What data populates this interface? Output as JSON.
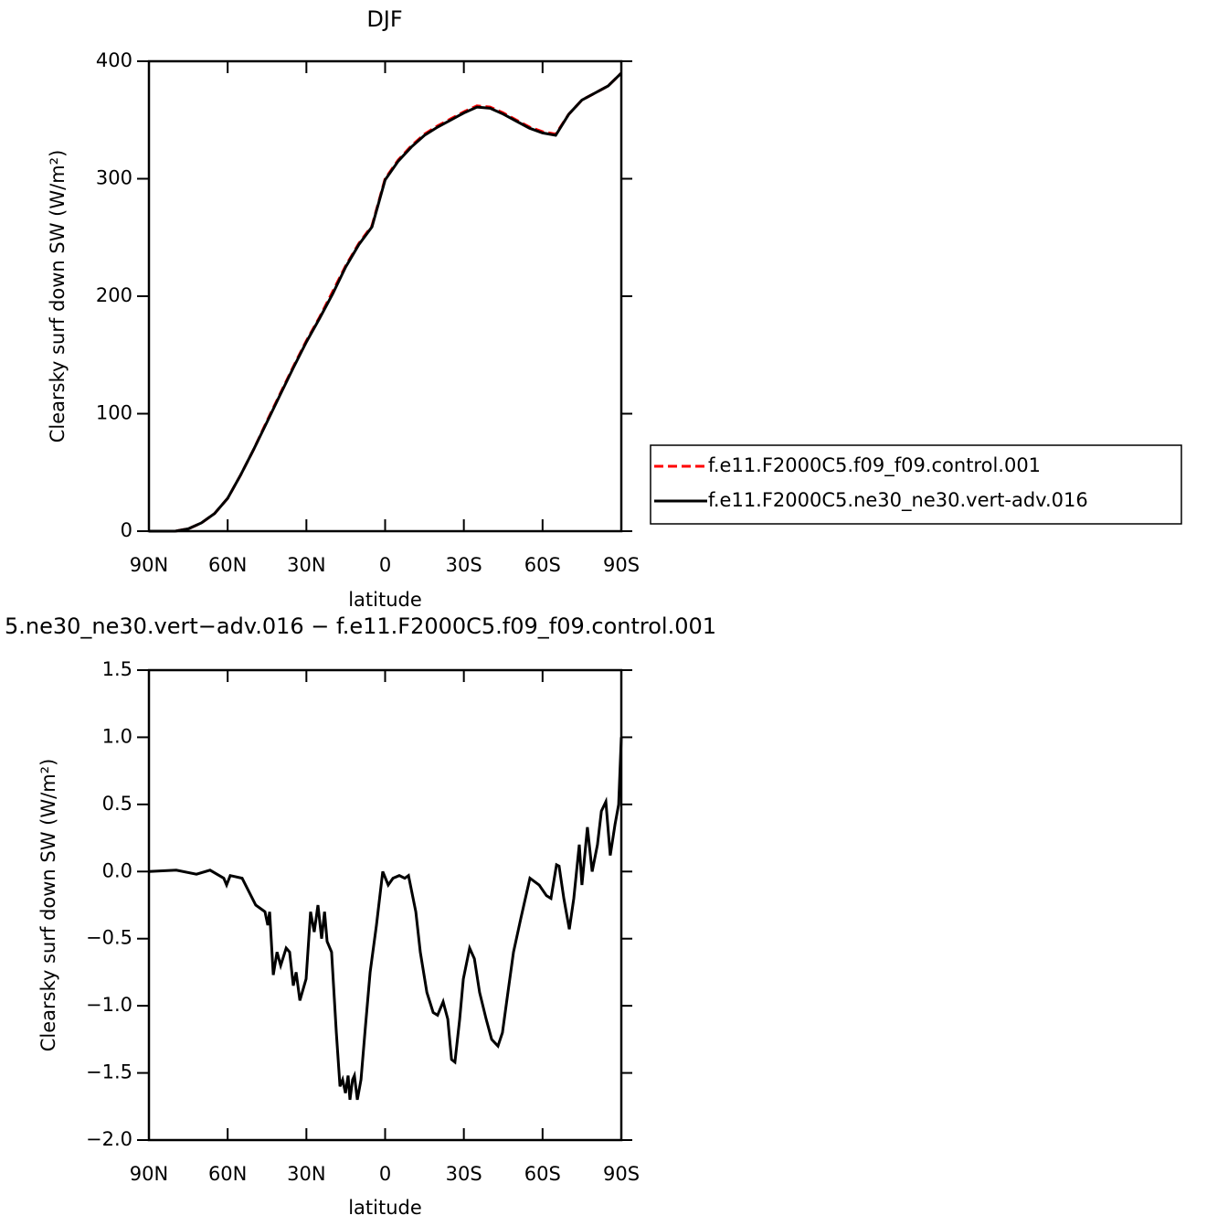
{
  "chart_data": [
    {
      "type": "line",
      "title": "DJF",
      "ylabel": "Clearsky surf down SW (W/m²)",
      "xlabel": "latitude",
      "x": [
        90,
        85,
        80,
        75,
        70,
        65,
        60,
        55,
        50,
        45,
        40,
        35,
        30,
        25,
        20,
        15,
        10,
        5,
        0,
        -5,
        -10,
        -15,
        -20,
        -25,
        -30,
        -35,
        -40,
        -45,
        -50,
        -55,
        -60,
        -65,
        -70,
        -75,
        -80,
        -85,
        -90
      ],
      "series": [
        {
          "name": "f.e11.F2000C5.f09_f09.control.001",
          "color": "#ff0000",
          "dash": true,
          "values": [
            0,
            0,
            0,
            2,
            7,
            15,
            28,
            48,
            70,
            94,
            117,
            140,
            162,
            182,
            204,
            226,
            245,
            260,
            300,
            316,
            328,
            338,
            345,
            351,
            357,
            362,
            361,
            356,
            350,
            344,
            340,
            338,
            355,
            367,
            373,
            379,
            390
          ]
        },
        {
          "name": "f.e11.F2000C5.ne30_ne30.vert-adv.016",
          "color": "#000000",
          "dash": false,
          "values": [
            0,
            0,
            0,
            2,
            7,
            15,
            28,
            48,
            70,
            93,
            116,
            139,
            161,
            181,
            202,
            225,
            244,
            259,
            299,
            315,
            327,
            337,
            344,
            350,
            356,
            361,
            360,
            355,
            349,
            343,
            339,
            337,
            355,
            367,
            373,
            379,
            390
          ]
        }
      ],
      "xlim": [
        90,
        -90
      ],
      "ylim": [
        0,
        400
      ],
      "xticks": [
        {
          "value": 90,
          "label": "90N"
        },
        {
          "value": 60,
          "label": "60N"
        },
        {
          "value": 30,
          "label": "30N"
        },
        0,
        {
          "value": -30,
          "label": "30S"
        },
        {
          "value": -60,
          "label": "60S"
        },
        {
          "value": -90,
          "label": "90S"
        }
      ],
      "yticks": [
        0,
        100,
        200,
        300,
        400
      ]
    },
    {
      "type": "line",
      "title": "5.ne30_ne30.vert−adv.016 − f.e11.F2000C5.f09_f09.control.001",
      "ylabel": "Clearsky surf down SW (W/m²)",
      "xlabel": "latitude",
      "x": [
        90,
        79.6,
        71.9,
        66.7,
        61.5,
        60.4,
        59.0,
        54.5,
        49.3,
        45.8,
        44.7,
        44.0,
        42.6,
        41.2,
        39.8,
        37.7,
        36.4,
        35.0,
        33.9,
        32.5,
        30.1,
        28.4,
        27.0,
        25.6,
        24.2,
        23.1,
        22.1,
        20.4,
        18.6,
        17.2,
        16.2,
        15.1,
        14.1,
        13.4,
        12.4,
        11.7,
        10.6,
        9.2,
        7.5,
        5.7,
        3.3,
        0.9,
        -1.2,
        -3.0,
        -5.4,
        -7.5,
        -8.9,
        -11.7,
        -13.4,
        -15.9,
        -18.3,
        -20.0,
        -22.1,
        -23.9,
        -25.3,
        -26.6,
        -28.4,
        -29.8,
        -32.2,
        -34.0,
        -36.0,
        -38.5,
        -40.6,
        -43.0,
        -44.7,
        -46.8,
        -48.9,
        -51.7,
        -55.2,
        -58.7,
        -61.5,
        -63.2,
        -65.3,
        -66.3,
        -68.1,
        -70.2,
        -71.9,
        -74.0,
        -75.0,
        -77.1,
        -78.9,
        -80.9,
        -82.4,
        -84.1,
        -85.8,
        -87.6,
        -89.0,
        -90.0
      ],
      "values": [
        0,
        0.01,
        -0.02,
        0.01,
        -0.05,
        -0.1,
        -0.03,
        -0.05,
        -0.25,
        -0.3,
        -0.4,
        -0.3,
        -0.77,
        -0.6,
        -0.7,
        -0.57,
        -0.6,
        -0.85,
        -0.75,
        -0.96,
        -0.8,
        -0.3,
        -0.45,
        -0.25,
        -0.5,
        -0.3,
        -0.52,
        -0.6,
        -1.2,
        -1.6,
        -1.55,
        -1.65,
        -1.52,
        -1.7,
        -1.55,
        -1.52,
        -1.7,
        -1.55,
        -1.15,
        -0.75,
        -0.4,
        0.0,
        -0.1,
        -0.05,
        -0.03,
        -0.05,
        -0.03,
        -0.3,
        -0.6,
        -0.9,
        -1.05,
        -1.07,
        -0.97,
        -1.1,
        -1.4,
        -1.42,
        -1.1,
        -0.8,
        -0.57,
        -0.65,
        -0.9,
        -1.1,
        -1.25,
        -1.3,
        -1.2,
        -0.9,
        -0.6,
        -0.35,
        -0.05,
        -0.1,
        -0.18,
        -0.2,
        0.05,
        0.04,
        -0.2,
        -0.43,
        -0.2,
        0.2,
        -0.1,
        0.33,
        0.0,
        0.2,
        0.45,
        0.52,
        0.12,
        0.35,
        0.5,
        1.0
      ],
      "color": "#000000",
      "xlim": [
        90,
        -90
      ],
      "ylim": [
        -2.0,
        1.5
      ],
      "xticks": [
        {
          "value": 90,
          "label": "90N"
        },
        {
          "value": 60,
          "label": "60N"
        },
        {
          "value": 30,
          "label": "30N"
        },
        0,
        {
          "value": -30,
          "label": "30S"
        },
        {
          "value": -60,
          "label": "60S"
        },
        {
          "value": -90,
          "label": "90S"
        }
      ],
      "yticks": [
        {
          "value": -2.0,
          "label": "−2.0"
        },
        {
          "value": -1.5,
          "label": "−1.5"
        },
        {
          "value": -1.0,
          "label": "−1.0"
        },
        {
          "value": -0.5,
          "label": "−0.5"
        },
        {
          "value": 0.0,
          "label": "0.0"
        },
        {
          "value": 0.5,
          "label": "0.5"
        },
        {
          "value": 1.0,
          "label": "1.0"
        },
        {
          "value": 1.5,
          "label": "1.5"
        }
      ]
    }
  ]
}
